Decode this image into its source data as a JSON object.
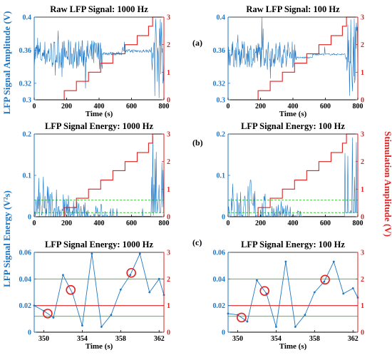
{
  "figure": {
    "left_ylabel_top": "LFP Signal Amplitude (V)",
    "left_ylabel_bottom": "LFP Signal Energy (V²s)",
    "right_ylabel": "Stimulation Amplitude (V)",
    "panel_letters": [
      "(a)",
      "(b)",
      "(c)"
    ],
    "colors": {
      "signal": "#1f77c4",
      "stimulation": "#e32222",
      "threshold": "#33cc33",
      "axis_left": "#1f77c4",
      "axis_right": "#e32222"
    }
  },
  "chart_data": [
    {
      "type": "line",
      "title": "Raw LFP Signal: 1000 Hz",
      "xlabel": "Time (s)",
      "xlim": [
        0,
        800
      ],
      "ylim": [
        0.3,
        0.4
      ],
      "y2lim": [
        0,
        3
      ],
      "x_ticks": [
        0,
        200,
        400,
        600,
        800
      ],
      "y_ticks": [
        "0.3",
        "0.32",
        "0.36",
        "0.4"
      ],
      "y2_ticks": [
        "0",
        "1",
        "2",
        "3"
      ],
      "series": [
        {
          "values": "noisy raw LFP trace",
          "axis": "left",
          "note": "dense noise 0–420 s, flat ~0.357 from 420–700 s, burst after 730 s"
        },
        {
          "axis": "right",
          "x": [
            0,
            185,
            185,
            260,
            260,
            335,
            335,
            410,
            410,
            485,
            485,
            560,
            560,
            635,
            635,
            705,
            705,
            730,
            730,
            800
          ],
          "values": [
            0,
            0,
            0.33,
            0.33,
            0.67,
            0.67,
            1.0,
            1.0,
            1.33,
            1.33,
            1.67,
            1.67,
            2.0,
            2.0,
            2.33,
            2.33,
            2.67,
            2.67,
            3.0,
            3.0
          ]
        }
      ]
    },
    {
      "type": "line",
      "title": "Raw LFP Signal: 100 Hz",
      "xlabel": "Time (s)",
      "xlim": [
        0,
        800
      ],
      "ylim": [
        0.3,
        0.4
      ],
      "y2lim": [
        0,
        3
      ],
      "x_ticks": [
        0,
        200,
        400,
        600,
        800
      ],
      "y_ticks": [
        "0.3",
        "0.32",
        "0.36",
        "0.4"
      ],
      "y2_ticks": [
        "0",
        "1",
        "2",
        "3"
      ],
      "series": [
        {
          "values": "noisy raw LFP trace (downsampled)",
          "axis": "left"
        },
        {
          "axis": "right",
          "x": [
            0,
            185,
            185,
            260,
            260,
            335,
            335,
            410,
            410,
            485,
            485,
            560,
            560,
            635,
            635,
            705,
            705,
            730,
            730,
            800
          ],
          "values": [
            0,
            0,
            0.33,
            0.33,
            0.67,
            0.67,
            1.0,
            1.0,
            1.33,
            1.33,
            1.67,
            1.67,
            2.0,
            2.0,
            2.33,
            2.33,
            2.67,
            2.67,
            3.0,
            3.0
          ]
        }
      ]
    },
    {
      "type": "line",
      "title": "LFP Signal Energy: 1000 Hz",
      "xlabel": "",
      "xlim": [
        0,
        800
      ],
      "ylim": [
        0,
        0.2
      ],
      "y2lim": [
        0,
        3
      ],
      "x_ticks": [
        0,
        200,
        400,
        600,
        800
      ],
      "y_ticks": [
        "0",
        "0.1",
        "0.2"
      ],
      "y2_ticks": [
        "0",
        "1",
        "2",
        "3"
      ],
      "thresholds": [
        0.01,
        0.04
      ],
      "series": [
        {
          "axis": "left",
          "values": "signal energy trace"
        },
        {
          "axis": "right",
          "x": [
            0,
            185,
            185,
            260,
            260,
            335,
            335,
            410,
            410,
            485,
            485,
            560,
            560,
            635,
            635,
            705,
            705,
            730,
            730,
            800
          ],
          "values": [
            0,
            0,
            0.33,
            0.33,
            0.67,
            0.67,
            1.0,
            1.0,
            1.33,
            1.33,
            1.67,
            1.67,
            2.0,
            2.0,
            2.33,
            2.33,
            2.67,
            2.67,
            3.0,
            3.0
          ]
        }
      ]
    },
    {
      "type": "line",
      "title": "LFP Signal Energy: 100 Hz",
      "xlabel": "",
      "xlim": [
        0,
        800
      ],
      "ylim": [
        0,
        0.2
      ],
      "y2lim": [
        0,
        3
      ],
      "x_ticks": [
        0,
        200,
        400,
        600,
        800
      ],
      "y_ticks": [
        "0",
        "0.1",
        "0.2"
      ],
      "y2_ticks": [
        "0",
        "1",
        "2",
        "3"
      ],
      "thresholds": [
        0.01,
        0.04
      ],
      "series": [
        {
          "axis": "left",
          "values": "signal energy trace"
        },
        {
          "axis": "right",
          "x": [
            0,
            185,
            185,
            260,
            260,
            335,
            335,
            410,
            410,
            485,
            485,
            560,
            560,
            635,
            635,
            705,
            705,
            730,
            730,
            800
          ],
          "values": [
            0,
            0,
            0.33,
            0.33,
            0.67,
            0.67,
            1.0,
            1.0,
            1.33,
            1.33,
            1.67,
            1.67,
            2.0,
            2.0,
            2.33,
            2.33,
            2.67,
            2.67,
            3.0,
            3.0
          ]
        }
      ]
    },
    {
      "type": "line",
      "title": "LFP Signal Energy: 1000 Hz",
      "xlabel": "Time (s)",
      "xlim": [
        349,
        362.5
      ],
      "ylim": [
        0,
        0.06
      ],
      "y2lim": [
        0,
        3
      ],
      "x_ticks": [
        350,
        354,
        358,
        362
      ],
      "y_ticks": [
        "0",
        "0.02",
        "0.04",
        "0.06"
      ],
      "y2_ticks": [
        "0",
        "1",
        "2",
        "3"
      ],
      "thresholds": [
        0.012,
        0.04
      ],
      "stimulation_level": 1.0,
      "series": [
        {
          "axis": "left",
          "x": [
            349,
            350,
            351,
            352,
            353,
            354,
            355,
            356,
            357,
            358,
            359,
            360,
            361,
            362,
            362.5
          ],
          "values": [
            0.02,
            0.016,
            0.011,
            0.043,
            0.029,
            0.005,
            0.059,
            0.004,
            0.013,
            0.032,
            0.043,
            0.059,
            0.03,
            0.04,
            0.028
          ]
        }
      ],
      "circled_x": [
        350.4,
        352.8,
        359.1
      ]
    },
    {
      "type": "line",
      "title": "LFP Signal Energy: 100 Hz",
      "xlabel": "Time (s)",
      "xlim": [
        349,
        362.5
      ],
      "ylim": [
        0,
        0.06
      ],
      "y2lim": [
        0,
        3
      ],
      "x_ticks": [
        350,
        354,
        358,
        362
      ],
      "y_ticks": [
        "0",
        "0.02",
        "0.04",
        "0.06"
      ],
      "y2_ticks": [
        "0",
        "1",
        "2",
        "3"
      ],
      "thresholds": [
        0.012,
        0.04
      ],
      "stimulation_level": 1.0,
      "series": [
        {
          "axis": "left",
          "x": [
            349,
            350,
            351,
            352,
            353,
            354,
            355,
            356,
            357,
            358,
            359,
            360,
            361,
            362,
            362.5
          ],
          "values": [
            0.014,
            0.013,
            0.008,
            0.039,
            0.029,
            0.004,
            0.053,
            0.004,
            0.013,
            0.03,
            0.038,
            0.053,
            0.029,
            0.033,
            0.026
          ]
        }
      ],
      "circled_x": [
        350.4,
        352.8,
        359.1
      ]
    }
  ]
}
